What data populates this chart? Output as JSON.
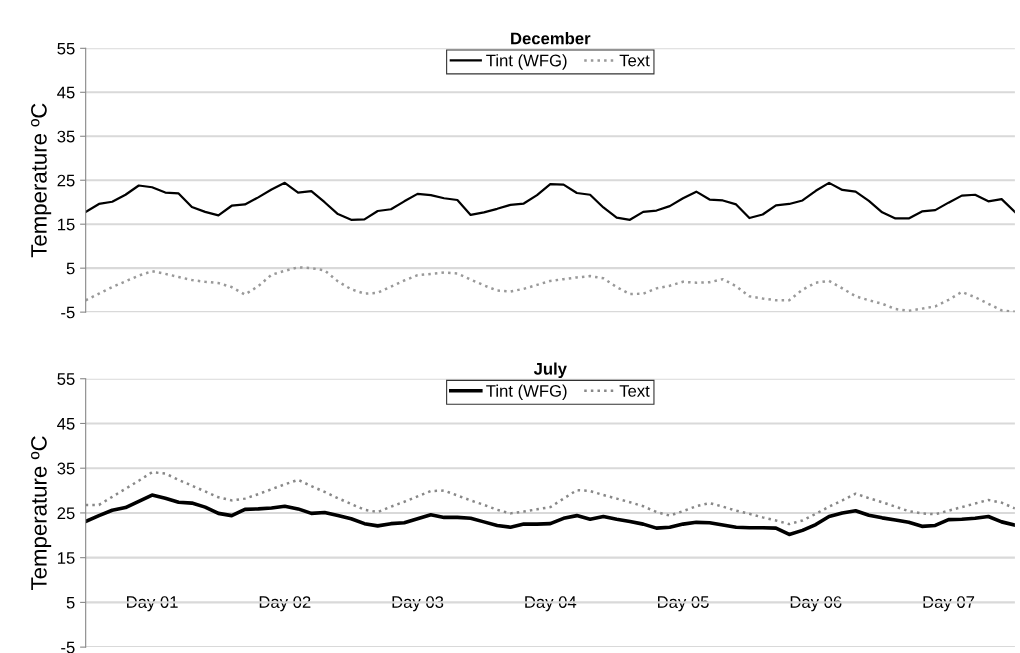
{
  "chart_data": [
    {
      "type": "line",
      "title": "December",
      "ylabel": "Temperature ºC",
      "ylim": [
        -5,
        55
      ],
      "yticks": [
        -5,
        5,
        15,
        25,
        35,
        45,
        55
      ],
      "grid": "y",
      "legend": "top",
      "categories": [
        null,
        null,
        null,
        null,
        null,
        null,
        null,
        null,
        null,
        null,
        null,
        null,
        null,
        null,
        null,
        null,
        null,
        null,
        null,
        null,
        null,
        null,
        null,
        null,
        null,
        null,
        null,
        null,
        null,
        null,
        null,
        null,
        null,
        null,
        null,
        null,
        null,
        null,
        null,
        null,
        null,
        null,
        null,
        null,
        null,
        null,
        null,
        null,
        null,
        null,
        null,
        null,
        null,
        null,
        null,
        null,
        null,
        null,
        null,
        null,
        null,
        null,
        null,
        null,
        null,
        null,
        null,
        null,
        null,
        null,
        null
      ],
      "series": [
        {
          "name": "Tint (WFG)",
          "color": "#000000",
          "line_style": "solid",
          "values": [
            17.8,
            19.6,
            20.1,
            21.7,
            23.8,
            23.4,
            22.2,
            22.0,
            18.9,
            17.8,
            17.0,
            19.2,
            19.5,
            21.1,
            22.9,
            24.4,
            22.2,
            22.5,
            20.0,
            17.3,
            16.0,
            16.1,
            18.0,
            18.4,
            20.2,
            21.9,
            21.6,
            20.9,
            20.5,
            17.1,
            17.7,
            18.5,
            19.4,
            19.7,
            21.6,
            24.1,
            24.0,
            22.1,
            21.7,
            18.8,
            16.5,
            16.0,
            17.8,
            18.1,
            19.1,
            20.9,
            22.4,
            20.6,
            20.4,
            19.5,
            16.4,
            17.2,
            19.3,
            19.6,
            20.4,
            22.6,
            24.4,
            22.8,
            22.4,
            20.3,
            17.7,
            16.3,
            16.3,
            17.9,
            18.2,
            19.9,
            21.5,
            21.7,
            20.2,
            20.7,
            17.8
          ]
        },
        {
          "name": "Text",
          "color": "#999999",
          "line_style": "dotted",
          "values": [
            -2.3,
            -0.8,
            0.7,
            2.0,
            3.3,
            4.3,
            3.7,
            3.0,
            2.3,
            1.9,
            1.6,
            0.7,
            -1.0,
            0.9,
            3.5,
            4.4,
            5.2,
            5.0,
            4.5,
            2.0,
            0.2,
            -0.8,
            -0.6,
            0.8,
            2.2,
            3.4,
            3.7,
            4.0,
            3.8,
            2.4,
            1.1,
            -0.1,
            -0.3,
            0.3,
            1.2,
            2.1,
            2.5,
            2.9,
            3.2,
            2.7,
            0.7,
            -0.9,
            -0.8,
            0.4,
            1.0,
            1.9,
            1.7,
            1.8,
            2.5,
            0.9,
            -1.4,
            -1.9,
            -2.3,
            -2.3,
            0.1,
            1.7,
            2.1,
            0.4,
            -1.4,
            -2.3,
            -3.1,
            -4.3,
            -4.7,
            -4.2,
            -3.7,
            -2.2,
            -0.4,
            -1.6,
            -3.1,
            -4.6,
            -4.9
          ]
        }
      ]
    },
    {
      "type": "line",
      "title": "July",
      "ylabel": "Temperature ºC",
      "ylim": [
        -5,
        55
      ],
      "yticks": [
        -5,
        5,
        15,
        25,
        35,
        45,
        55
      ],
      "grid": "y",
      "legend": "top",
      "categories": [
        null,
        null,
        null,
        null,
        null,
        "Day 01",
        null,
        null,
        null,
        null,
        null,
        null,
        null,
        null,
        null,
        "Day 02",
        null,
        null,
        null,
        null,
        null,
        null,
        null,
        null,
        null,
        "Day 03",
        null,
        null,
        null,
        null,
        null,
        null,
        null,
        null,
        null,
        "Day 04",
        null,
        null,
        null,
        null,
        null,
        null,
        null,
        null,
        null,
        "Day 05",
        null,
        null,
        null,
        null,
        null,
        null,
        null,
        null,
        null,
        "Day 06",
        null,
        null,
        null,
        null,
        null,
        null,
        null,
        null,
        null,
        "Day 07",
        null,
        null,
        null,
        null,
        null
      ],
      "series": [
        {
          "name": "Tint (WFG)",
          "color": "#000000",
          "line_style": "solid",
          "values": [
            23.1,
            24.4,
            25.6,
            26.2,
            27.6,
            29.0,
            28.3,
            27.4,
            27.2,
            26.3,
            24.9,
            24.4,
            25.8,
            25.9,
            26.1,
            26.5,
            25.9,
            24.9,
            25.1,
            24.4,
            23.7,
            22.6,
            22.1,
            22.6,
            22.8,
            23.7,
            24.6,
            24.0,
            24.0,
            23.8,
            23.0,
            22.2,
            21.8,
            22.5,
            22.5,
            22.6,
            23.8,
            24.4,
            23.6,
            24.2,
            23.6,
            23.1,
            22.5,
            21.6,
            21.8,
            22.5,
            22.9,
            22.8,
            22.3,
            21.8,
            21.7,
            21.7,
            21.6,
            20.2,
            21.1,
            22.4,
            24.2,
            25.0,
            25.5,
            24.5,
            23.9,
            23.4,
            22.9,
            22.0,
            22.2,
            23.5,
            23.6,
            23.8,
            24.2,
            23.0,
            22.3
          ]
        },
        {
          "name": "Text",
          "color": "#888888",
          "line_style": "dotted",
          "values": [
            26.8,
            26.8,
            28.6,
            30.4,
            32.2,
            34.1,
            33.8,
            32.4,
            31.1,
            29.8,
            28.5,
            27.8,
            28.2,
            29.2,
            30.3,
            31.4,
            32.4,
            31.0,
            29.7,
            28.3,
            27.0,
            25.7,
            25.2,
            26.4,
            27.5,
            28.7,
            29.9,
            30.0,
            28.9,
            27.8,
            26.8,
            25.7,
            24.9,
            25.3,
            25.8,
            26.3,
            28.2,
            30.1,
            29.9,
            29.0,
            28.2,
            27.4,
            26.5,
            25.2,
            24.4,
            25.4,
            26.5,
            27.2,
            26.4,
            25.5,
            24.8,
            24.0,
            23.3,
            22.5,
            23.3,
            24.8,
            26.4,
            27.8,
            29.3,
            28.3,
            27.4,
            26.4,
            25.4,
            24.9,
            24.7,
            25.5,
            26.3,
            27.1,
            27.9,
            27.3,
            26.0
          ]
        }
      ]
    }
  ]
}
